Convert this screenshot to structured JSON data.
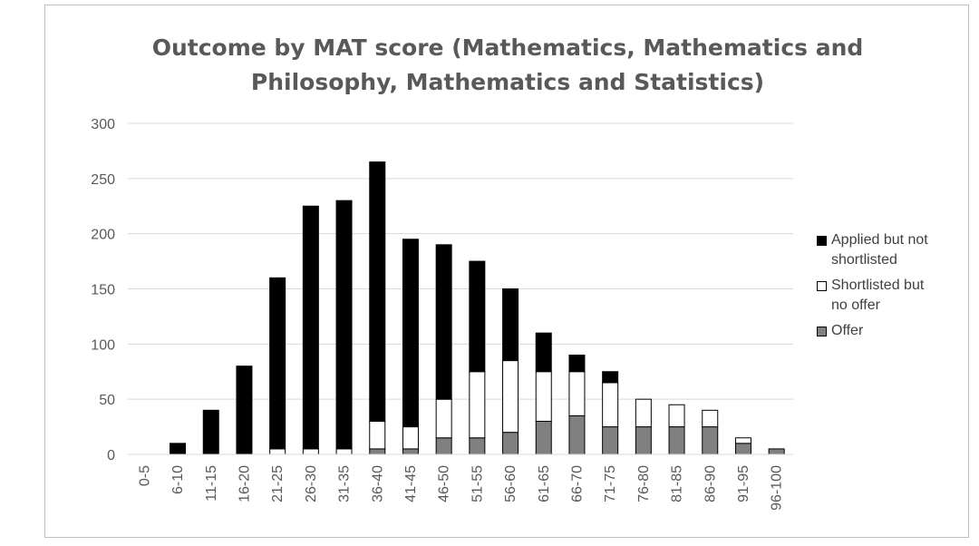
{
  "chart_data": {
    "type": "bar",
    "stacked": true,
    "title_lines": [
      "Outcome by MAT score (Mathematics, Mathematics and",
      "Philosophy, Mathematics and Statistics)"
    ],
    "categories": [
      "0-5",
      "6-10",
      "11-15",
      "16-20",
      "21-25",
      "26-30",
      "31-35",
      "36-40",
      "41-45",
      "46-50",
      "51-55",
      "56-60",
      "61-65",
      "66-70",
      "71-75",
      "76-80",
      "81-85",
      "86-90",
      "91-95",
      "96-100"
    ],
    "series": [
      {
        "name": "Offer",
        "color": "#808080",
        "values": [
          0,
          0,
          0,
          0,
          0,
          0,
          0,
          5,
          5,
          15,
          15,
          20,
          30,
          35,
          25,
          25,
          25,
          25,
          10,
          5
        ]
      },
      {
        "name": "Shortlisted but no offer",
        "color": "#ffffff",
        "values": [
          0,
          0,
          0,
          0,
          5,
          5,
          5,
          25,
          20,
          35,
          60,
          65,
          45,
          40,
          40,
          25,
          20,
          15,
          5,
          0
        ]
      },
      {
        "name": "Applied but not shortlisted",
        "color": "#000000",
        "values": [
          0,
          10,
          40,
          80,
          155,
          220,
          225,
          235,
          170,
          140,
          100,
          65,
          35,
          15,
          10,
          0,
          0,
          0,
          0,
          0
        ]
      }
    ],
    "yticks": [
      0,
      50,
      100,
      150,
      200,
      250,
      300
    ],
    "ylim": [
      0,
      300
    ],
    "grid": true,
    "legend_position": "right",
    "legend_order": [
      "Applied but not shortlisted",
      "Shortlisted but no offer",
      "Offer"
    ],
    "legend_lines": [
      [
        "Applied but not",
        "shortlisted"
      ],
      [
        "Shortlisted but",
        "no offer"
      ],
      [
        "Offer"
      ]
    ]
  }
}
